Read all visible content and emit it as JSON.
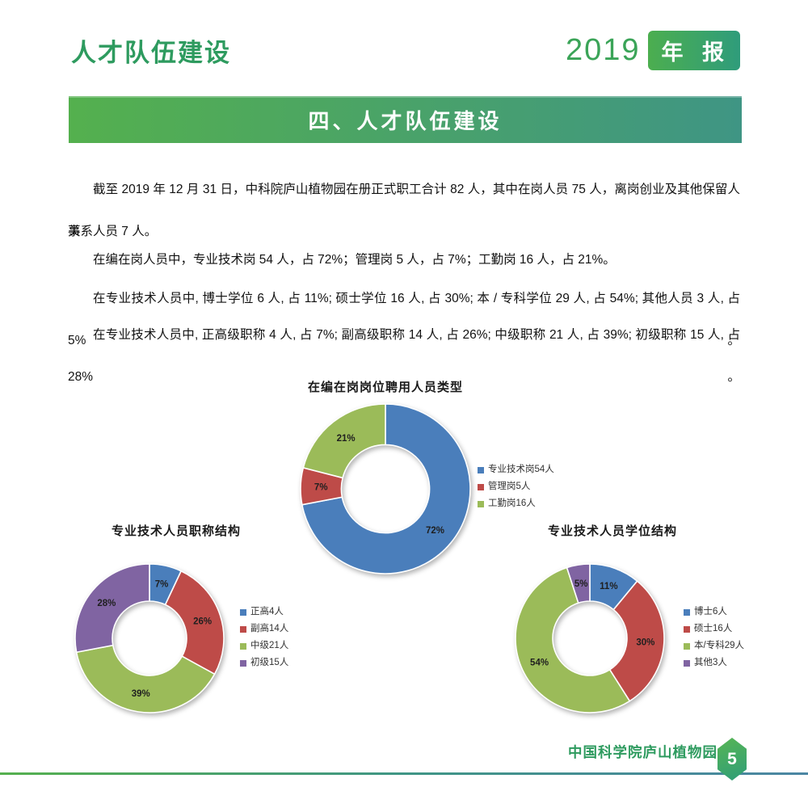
{
  "header": {
    "section_label": "人才队伍建设",
    "year": "2019",
    "year_badge": "年 报"
  },
  "banner": {
    "title": "四、人才队伍建设"
  },
  "body": {
    "p1_line1": "截至 2019 年 12 月 31 日，中科院庐山植物园在册正式职工合计 82 人，其中在岗人员 75 人，离岗创业及其他保留人事",
    "p1_line2": "关系人员 7 人。",
    "p2": "在编在岗人员中，专业技术岗 54 人，占 72%；管理岗 5 人，占 7%；工勤岗 16 人，占 21%。",
    "p3": "在专业技术人员中, 博士学位 6 人, 占 11%; 硕士学位 16 人, 占 30%; 本 / 专科学位 29 人, 占 54%; 其他人员 3 人, 占 5%。",
    "p4": "在专业技术人员中, 正高级职称 4 人, 占 7%; 副高级职称 14 人, 占 26%; 中级职称 21 人, 占 39%; 初级职称 15 人, 占 28%。"
  },
  "chart_data": [
    {
      "type": "pie",
      "subtype": "donut",
      "title": "在编在岗岗位聘用人员类型",
      "legend": [
        "专业技术岗54人",
        "管理岗5人",
        "工勤岗16人"
      ],
      "counts": [
        54,
        5,
        16
      ],
      "values_pct": [
        72,
        7,
        21
      ],
      "labels_pct": [
        "72%",
        "7%",
        "21%"
      ],
      "colors": [
        "#4A7EBB",
        "#BE4B48",
        "#9BBB59"
      ],
      "legend_position": "right",
      "start_angle": 0,
      "direction": "clockwise"
    },
    {
      "type": "pie",
      "subtype": "donut",
      "title": "专业技术人员职称结构",
      "legend": [
        "正高4人",
        "副高14人",
        "中级21人",
        "初级15人"
      ],
      "counts": [
        4,
        14,
        21,
        15
      ],
      "values_pct": [
        7,
        26,
        39,
        28
      ],
      "labels_pct": [
        "7%",
        "26%",
        "39%",
        "28%"
      ],
      "colors": [
        "#4A7EBB",
        "#BE4B48",
        "#9BBB59",
        "#8064A2"
      ],
      "legend_position": "right",
      "start_angle": 0,
      "direction": "clockwise"
    },
    {
      "type": "pie",
      "subtype": "donut",
      "title": "专业技术人员学位结构",
      "legend": [
        "博士6人",
        "硕士16人",
        "本/专科29人",
        "其他3人"
      ],
      "counts": [
        6,
        16,
        29,
        3
      ],
      "values_pct": [
        11,
        30,
        54,
        5
      ],
      "labels_pct": [
        "11%",
        "30%",
        "54%",
        "5%"
      ],
      "colors": [
        "#4A7EBB",
        "#BE4B48",
        "#9BBB59",
        "#8064A2"
      ],
      "legend_position": "right",
      "start_angle": 0,
      "direction": "clockwise"
    }
  ],
  "footer": {
    "org": "中国科学院庐山植物园",
    "page_number": "5"
  },
  "colors": {
    "accent_green": "#54B04E",
    "accent_teal": "#3F9584",
    "title_green": "#2E9B5F"
  }
}
